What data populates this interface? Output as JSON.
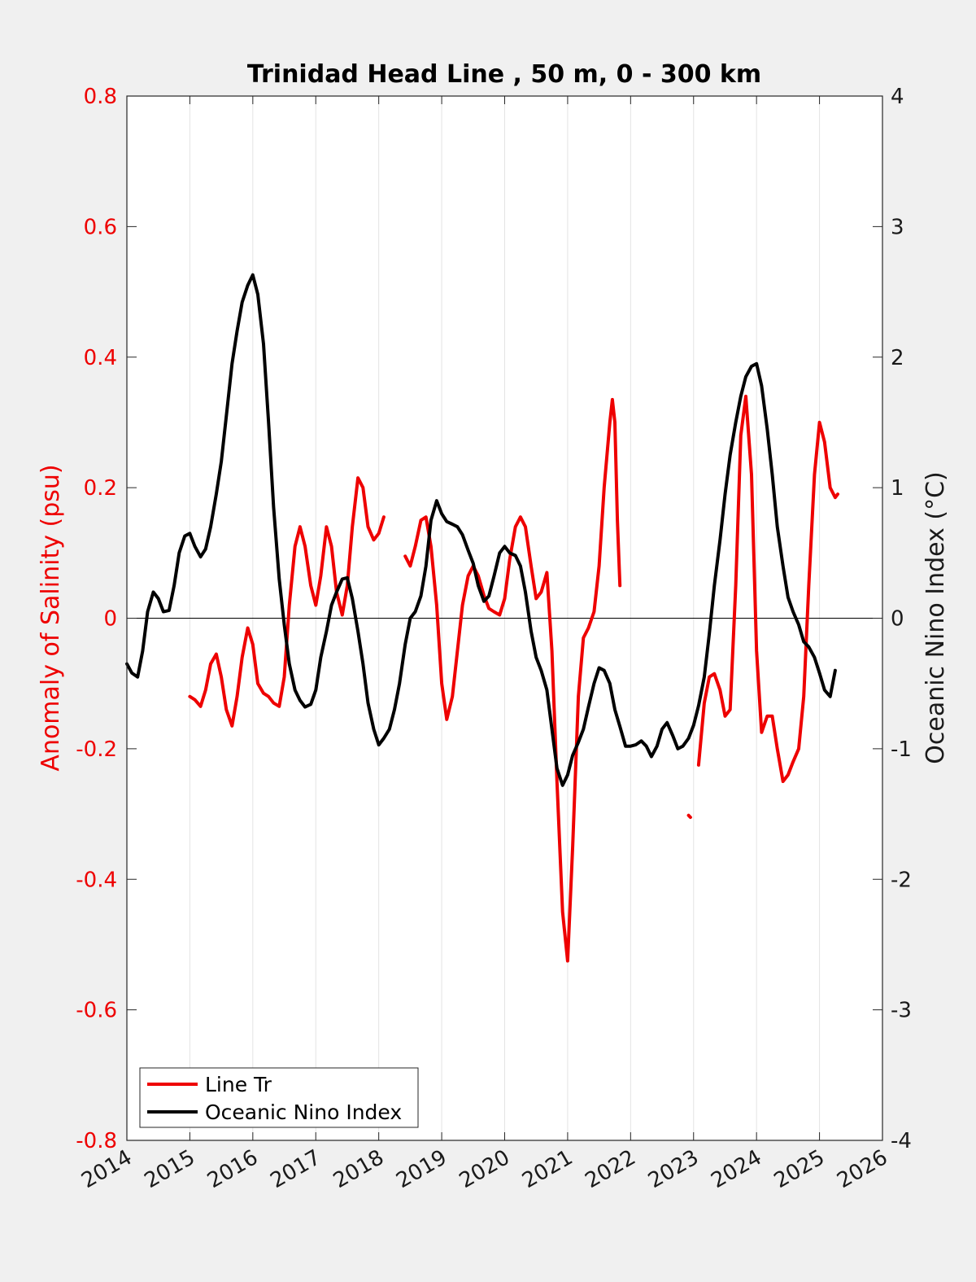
{
  "chart_data": {
    "type": "line",
    "title": "Trinidad Head Line , 50 m, 0 - 300 km",
    "x_ticks": [
      "2014",
      "2015",
      "2016",
      "2017",
      "2018",
      "2019",
      "2020",
      "2021",
      "2022",
      "2023",
      "2024",
      "2025",
      "2026"
    ],
    "xlim": [
      2014,
      2026
    ],
    "left_axis": {
      "label": "Anomaly of Salinity (psu)",
      "ylim": [
        -0.8,
        0.8
      ],
      "ticks": [
        "0.8",
        "0.6",
        "0.4",
        "0.2",
        "0",
        "-0.2",
        "-0.4",
        "-0.6",
        "-0.8"
      ],
      "tick_values": [
        0.8,
        0.6,
        0.4,
        0.2,
        0,
        -0.2,
        -0.4,
        -0.6,
        -0.8
      ],
      "color": "#ee0000"
    },
    "right_axis": {
      "label": "Oceanic Nino Index (°C)",
      "ylim": [
        -4,
        4
      ],
      "ticks": [
        "4",
        "3",
        "2",
        "1",
        "0",
        "-1",
        "-2",
        "-3",
        "-4"
      ],
      "tick_values": [
        4,
        3,
        2,
        1,
        0,
        -1,
        -2,
        -3,
        -4
      ],
      "color": "#000000"
    },
    "grid": "vertical",
    "legend_position": "bottom-left",
    "series": [
      {
        "name": "Line Tr",
        "axis": "left",
        "color": "#ee0000",
        "segments": [
          [
            [
              2015.0,
              -0.12
            ],
            [
              2015.08,
              -0.125
            ],
            [
              2015.17,
              -0.135
            ],
            [
              2015.25,
              -0.11
            ],
            [
              2015.33,
              -0.07
            ],
            [
              2015.42,
              -0.055
            ],
            [
              2015.5,
              -0.09
            ],
            [
              2015.58,
              -0.14
            ],
            [
              2015.67,
              -0.165
            ],
            [
              2015.75,
              -0.12
            ],
            [
              2015.83,
              -0.06
            ],
            [
              2015.92,
              -0.015
            ],
            [
              2016.0,
              -0.04
            ],
            [
              2016.08,
              -0.1
            ],
            [
              2016.17,
              -0.115
            ],
            [
              2016.25,
              -0.12
            ],
            [
              2016.33,
              -0.13
            ],
            [
              2016.42,
              -0.135
            ],
            [
              2016.5,
              -0.09
            ],
            [
              2016.58,
              0.02
            ],
            [
              2016.67,
              0.11
            ],
            [
              2016.75,
              0.14
            ],
            [
              2016.83,
              0.11
            ],
            [
              2016.92,
              0.05
            ],
            [
              2017.0,
              0.02
            ],
            [
              2017.08,
              0.065
            ],
            [
              2017.17,
              0.14
            ],
            [
              2017.25,
              0.11
            ],
            [
              2017.33,
              0.04
            ],
            [
              2017.42,
              0.005
            ],
            [
              2017.5,
              0.05
            ],
            [
              2017.58,
              0.14
            ],
            [
              2017.67,
              0.215
            ],
            [
              2017.75,
              0.2
            ],
            [
              2017.83,
              0.14
            ],
            [
              2017.92,
              0.12
            ],
            [
              2018.0,
              0.13
            ],
            [
              2018.08,
              0.155
            ]
          ],
          [
            [
              2018.42,
              0.095
            ],
            [
              2018.5,
              0.08
            ],
            [
              2018.58,
              0.11
            ],
            [
              2018.67,
              0.15
            ],
            [
              2018.75,
              0.155
            ],
            [
              2018.83,
              0.11
            ],
            [
              2018.92,
              0.02
            ],
            [
              2019.0,
              -0.1
            ],
            [
              2019.08,
              -0.155
            ],
            [
              2019.17,
              -0.12
            ],
            [
              2019.25,
              -0.05
            ],
            [
              2019.33,
              0.02
            ],
            [
              2019.42,
              0.065
            ],
            [
              2019.5,
              0.08
            ],
            [
              2019.58,
              0.065
            ],
            [
              2019.67,
              0.035
            ],
            [
              2019.75,
              0.015
            ],
            [
              2019.83,
              0.01
            ],
            [
              2019.92,
              0.005
            ],
            [
              2020.0,
              0.03
            ],
            [
              2020.08,
              0.09
            ],
            [
              2020.17,
              0.14
            ],
            [
              2020.25,
              0.155
            ],
            [
              2020.33,
              0.14
            ],
            [
              2020.42,
              0.08
            ],
            [
              2020.5,
              0.03
            ],
            [
              2020.58,
              0.04
            ],
            [
              2020.67,
              0.07
            ],
            [
              2020.75,
              -0.05
            ],
            [
              2020.83,
              -0.25
            ],
            [
              2020.92,
              -0.45
            ],
            [
              2021.0,
              -0.525
            ],
            [
              2021.08,
              -0.35
            ],
            [
              2021.17,
              -0.12
            ],
            [
              2021.25,
              -0.03
            ],
            [
              2021.33,
              -0.015
            ],
            [
              2021.42,
              0.01
            ],
            [
              2021.5,
              0.08
            ],
            [
              2021.58,
              0.2
            ],
            [
              2021.67,
              0.3
            ],
            [
              2021.71,
              0.335
            ],
            [
              2021.75,
              0.3
            ],
            [
              2021.79,
              0.15
            ],
            [
              2021.83,
              0.05
            ]
          ],
          [
            [
              2022.92,
              -0.302
            ],
            [
              2022.95,
              -0.305
            ]
          ],
          [
            [
              2023.08,
              -0.225
            ],
            [
              2023.17,
              -0.13
            ],
            [
              2023.25,
              -0.09
            ],
            [
              2023.33,
              -0.085
            ],
            [
              2023.42,
              -0.11
            ],
            [
              2023.5,
              -0.15
            ],
            [
              2023.58,
              -0.14
            ],
            [
              2023.67,
              0.05
            ],
            [
              2023.75,
              0.28
            ],
            [
              2023.83,
              0.34
            ],
            [
              2023.92,
              0.22
            ],
            [
              2024.0,
              -0.05
            ],
            [
              2024.08,
              -0.175
            ],
            [
              2024.17,
              -0.15
            ],
            [
              2024.25,
              -0.15
            ],
            [
              2024.33,
              -0.2
            ],
            [
              2024.42,
              -0.25
            ],
            [
              2024.5,
              -0.24
            ],
            [
              2024.58,
              -0.22
            ],
            [
              2024.67,
              -0.2
            ],
            [
              2024.75,
              -0.12
            ],
            [
              2024.83,
              0.05
            ],
            [
              2024.92,
              0.22
            ],
            [
              2025.0,
              0.3
            ],
            [
              2025.08,
              0.27
            ],
            [
              2025.17,
              0.2
            ],
            [
              2025.25,
              0.185
            ],
            [
              2025.29,
              0.19
            ]
          ]
        ]
      },
      {
        "name": "Oceanic Nino Index",
        "axis": "right",
        "color": "#000000",
        "segments": [
          [
            [
              2014.0,
              -0.35
            ],
            [
              2014.08,
              -0.42
            ],
            [
              2014.17,
              -0.45
            ],
            [
              2014.25,
              -0.25
            ],
            [
              2014.33,
              0.05
            ],
            [
              2014.42,
              0.2
            ],
            [
              2014.5,
              0.15
            ],
            [
              2014.58,
              0.05
            ],
            [
              2014.67,
              0.06
            ],
            [
              2014.75,
              0.25
            ],
            [
              2014.83,
              0.5
            ],
            [
              2014.92,
              0.63
            ],
            [
              2015.0,
              0.65
            ],
            [
              2015.08,
              0.55
            ],
            [
              2015.17,
              0.47
            ],
            [
              2015.25,
              0.53
            ],
            [
              2015.33,
              0.7
            ],
            [
              2015.42,
              0.95
            ],
            [
              2015.5,
              1.2
            ],
            [
              2015.58,
              1.55
            ],
            [
              2015.67,
              1.95
            ],
            [
              2015.75,
              2.2
            ],
            [
              2015.83,
              2.42
            ],
            [
              2015.92,
              2.55
            ],
            [
              2016.0,
              2.63
            ],
            [
              2016.08,
              2.48
            ],
            [
              2016.17,
              2.1
            ],
            [
              2016.25,
              1.5
            ],
            [
              2016.33,
              0.85
            ],
            [
              2016.42,
              0.3
            ],
            [
              2016.5,
              -0.05
            ],
            [
              2016.58,
              -0.35
            ],
            [
              2016.67,
              -0.55
            ],
            [
              2016.75,
              -0.63
            ],
            [
              2016.83,
              -0.68
            ],
            [
              2016.92,
              -0.66
            ],
            [
              2017.0,
              -0.55
            ],
            [
              2017.08,
              -0.3
            ],
            [
              2017.17,
              -0.1
            ],
            [
              2017.25,
              0.1
            ],
            [
              2017.33,
              0.2
            ],
            [
              2017.42,
              0.3
            ],
            [
              2017.5,
              0.31
            ],
            [
              2017.58,
              0.15
            ],
            [
              2017.67,
              -0.1
            ],
            [
              2017.75,
              -0.35
            ],
            [
              2017.83,
              -0.65
            ],
            [
              2017.92,
              -0.85
            ],
            [
              2018.0,
              -0.97
            ],
            [
              2018.08,
              -0.92
            ],
            [
              2018.17,
              -0.85
            ],
            [
              2018.25,
              -0.7
            ],
            [
              2018.33,
              -0.5
            ],
            [
              2018.42,
              -0.2
            ],
            [
              2018.5,
              0.0
            ],
            [
              2018.58,
              0.05
            ],
            [
              2018.67,
              0.17
            ],
            [
              2018.75,
              0.4
            ],
            [
              2018.83,
              0.75
            ],
            [
              2018.92,
              0.9
            ],
            [
              2019.0,
              0.8
            ],
            [
              2019.08,
              0.74
            ],
            [
              2019.17,
              0.72
            ],
            [
              2019.25,
              0.7
            ],
            [
              2019.33,
              0.64
            ],
            [
              2019.42,
              0.52
            ],
            [
              2019.5,
              0.42
            ],
            [
              2019.58,
              0.25
            ],
            [
              2019.67,
              0.13
            ],
            [
              2019.75,
              0.17
            ],
            [
              2019.83,
              0.32
            ],
            [
              2019.92,
              0.5
            ],
            [
              2020.0,
              0.55
            ],
            [
              2020.08,
              0.5
            ],
            [
              2020.17,
              0.48
            ],
            [
              2020.25,
              0.4
            ],
            [
              2020.33,
              0.2
            ],
            [
              2020.42,
              -0.1
            ],
            [
              2020.5,
              -0.3
            ],
            [
              2020.58,
              -0.4
            ],
            [
              2020.67,
              -0.55
            ],
            [
              2020.75,
              -0.85
            ],
            [
              2020.83,
              -1.15
            ],
            [
              2020.92,
              -1.28
            ],
            [
              2021.0,
              -1.2
            ],
            [
              2021.08,
              -1.05
            ],
            [
              2021.17,
              -0.95
            ],
            [
              2021.25,
              -0.85
            ],
            [
              2021.33,
              -0.68
            ],
            [
              2021.42,
              -0.5
            ],
            [
              2021.5,
              -0.38
            ],
            [
              2021.58,
              -0.4
            ],
            [
              2021.67,
              -0.5
            ],
            [
              2021.75,
              -0.7
            ],
            [
              2021.83,
              -0.83
            ],
            [
              2021.92,
              -0.98
            ],
            [
              2022.0,
              -0.98
            ],
            [
              2022.08,
              -0.97
            ],
            [
              2022.17,
              -0.94
            ],
            [
              2022.25,
              -0.98
            ],
            [
              2022.33,
              -1.06
            ],
            [
              2022.42,
              -0.98
            ],
            [
              2022.5,
              -0.85
            ],
            [
              2022.58,
              -0.8
            ],
            [
              2022.67,
              -0.9
            ],
            [
              2022.75,
              -1.0
            ],
            [
              2022.83,
              -0.98
            ],
            [
              2022.92,
              -0.92
            ],
            [
              2023.0,
              -0.82
            ],
            [
              2023.08,
              -0.67
            ],
            [
              2023.17,
              -0.45
            ],
            [
              2023.25,
              -0.12
            ],
            [
              2023.33,
              0.25
            ],
            [
              2023.42,
              0.6
            ],
            [
              2023.5,
              0.95
            ],
            [
              2023.58,
              1.25
            ],
            [
              2023.67,
              1.5
            ],
            [
              2023.75,
              1.7
            ],
            [
              2023.83,
              1.85
            ],
            [
              2023.92,
              1.93
            ],
            [
              2024.0,
              1.95
            ],
            [
              2024.08,
              1.78
            ],
            [
              2024.17,
              1.45
            ],
            [
              2024.25,
              1.1
            ],
            [
              2024.33,
              0.7
            ],
            [
              2024.42,
              0.4
            ],
            [
              2024.5,
              0.16
            ],
            [
              2024.58,
              0.05
            ],
            [
              2024.67,
              -0.05
            ],
            [
              2024.75,
              -0.18
            ],
            [
              2024.83,
              -0.22
            ],
            [
              2024.92,
              -0.3
            ],
            [
              2025.0,
              -0.42
            ],
            [
              2025.08,
              -0.55
            ],
            [
              2025.17,
              -0.6
            ],
            [
              2025.25,
              -0.4
            ]
          ]
        ]
      }
    ]
  }
}
